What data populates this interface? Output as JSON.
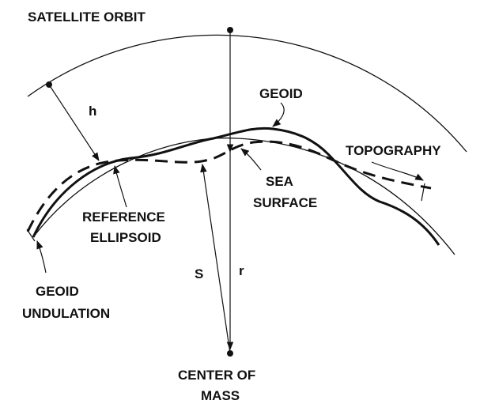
{
  "labels": {
    "satellite_orbit": "SATELLITE ORBIT",
    "h": "h",
    "geoid": "GEOID",
    "topography": "TOPOGRAPHY",
    "sea_surface": [
      "SEA",
      "SURFACE"
    ],
    "reference_ellipsoid": [
      "REFERENCE",
      "ELLIPSOID"
    ],
    "s": "S",
    "r": "r",
    "geoid_undulation": [
      "GEOID",
      "UNDULATION"
    ],
    "center_of_mass": [
      "CENTER OF",
      "MASS"
    ]
  }
}
